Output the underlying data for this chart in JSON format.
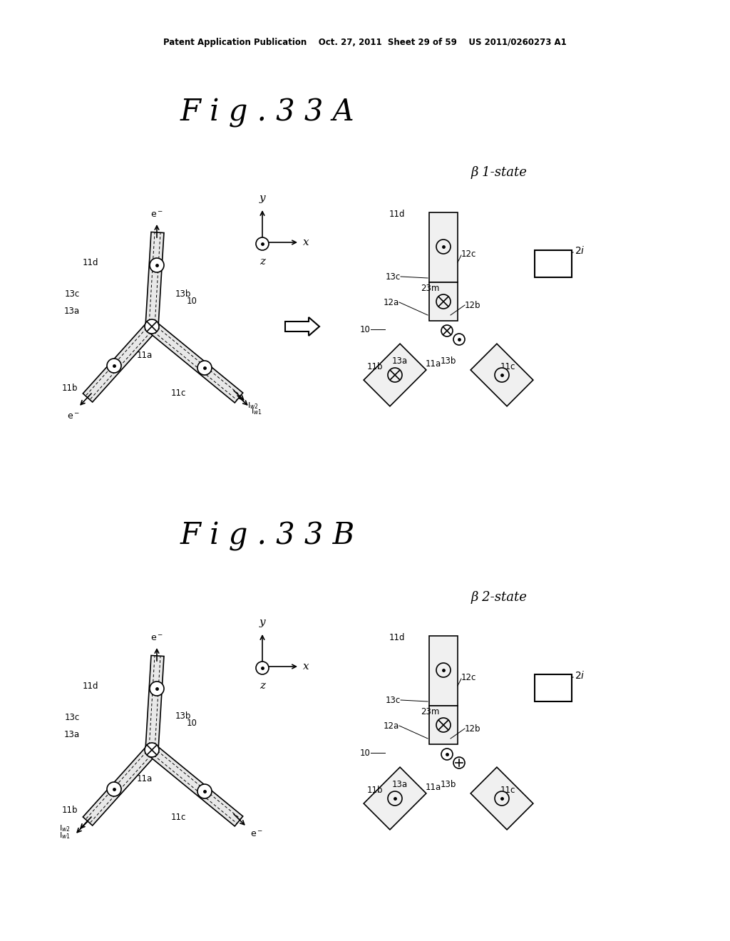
{
  "bg_color": "#ffffff",
  "line_color": "#000000",
  "header_text": "Patent Application Publication    Oct. 27, 2011  Sheet 29 of 59    US 2011/0260273 A1",
  "fig33A_title": "F i g . 3 3 A",
  "fig33B_title": "F i g . 3 3 B",
  "beta1_label": "β 1-state",
  "beta2_label": "β 2-state"
}
